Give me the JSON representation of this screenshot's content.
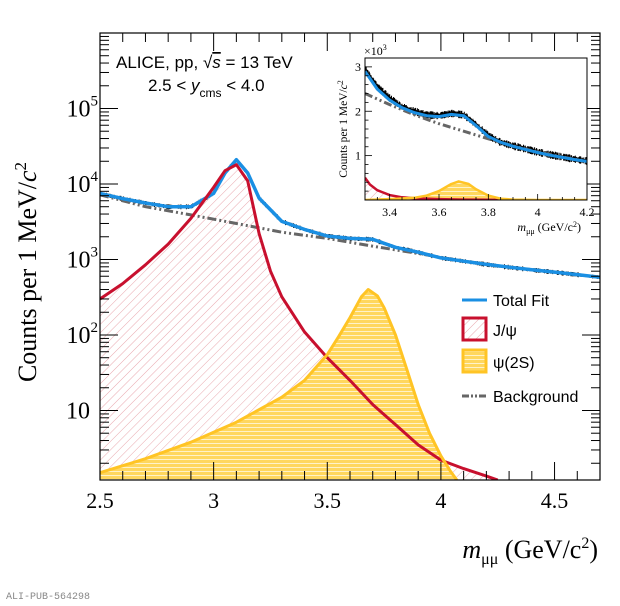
{
  "chart_data": [
    {
      "type": "line",
      "title": "",
      "xlabel_main": "m",
      "xlabel_sub": "μμ",
      "xlabel_unit": "(GeV/c",
      "xlabel_sup": "2",
      "xlabel_close": ")",
      "ylabel": "Counts per 1 MeV/",
      "ylabel_c": "c",
      "ylabel_sup": "2",
      "yscale": "log",
      "xlim": [
        2.5,
        4.7
      ],
      "ylim": [
        1.2,
        1000000
      ],
      "x_ticks": [
        {
          "value": 2.5,
          "label": "2.5"
        },
        {
          "value": 3.0,
          "label": "3"
        },
        {
          "value": 3.5,
          "label": "3.5"
        },
        {
          "value": 4.0,
          "label": "4"
        },
        {
          "value": 4.5,
          "label": "4.5"
        }
      ],
      "y_ticks": [
        {
          "value": 10,
          "base": "10",
          "exp": ""
        },
        {
          "value": 100,
          "base": "10",
          "exp": "2"
        },
        {
          "value": 1000,
          "base": "10",
          "exp": "3"
        },
        {
          "value": 10000,
          "base": "10",
          "exp": "4"
        },
        {
          "value": 100000,
          "base": "10",
          "exp": "5"
        }
      ],
      "annotations": {
        "line1_prefix": "ALICE, pp, ",
        "line1_sqrt": "√",
        "line1_s": "s",
        "line1_suffix": " = 13 TeV",
        "line2_prefix": "2.5 < ",
        "line2_y": "y",
        "line2_sub": "cms",
        "line2_suffix": " < 4.0"
      },
      "legend": {
        "placement": "right-middle",
        "entries": [
          {
            "label": "Total Fit",
            "color": "#1a8fe3",
            "style": "line"
          },
          {
            "label": "J/ψ",
            "color": "#c8102e",
            "style": "hatched-box"
          },
          {
            "label": "ψ(2S)",
            "color": "#ffc425",
            "style": "filled-box"
          },
          {
            "label": "Background",
            "color": "#666666",
            "style": "dash-dot"
          }
        ]
      },
      "series": [
        {
          "name": "Data",
          "color": "#000000",
          "x": [
            2.5,
            2.6,
            2.7,
            2.8,
            2.9,
            3.0,
            3.05,
            3.1,
            3.15,
            3.2,
            3.3,
            3.4,
            3.5,
            3.6,
            3.7,
            3.8,
            3.9,
            4.0,
            4.1,
            4.2,
            4.3,
            4.4,
            4.5,
            4.6,
            4.7
          ],
          "y": [
            7500,
            6400,
            5600,
            5000,
            5000,
            7500,
            14000,
            21000,
            14000,
            6500,
            3200,
            2500,
            2050,
            1900,
            1850,
            1450,
            1250,
            1050,
            950,
            860,
            790,
            730,
            680,
            630,
            580
          ]
        },
        {
          "name": "Total Fit",
          "color": "#1a8fe3",
          "x": [
            2.5,
            2.6,
            2.7,
            2.8,
            2.9,
            3.0,
            3.05,
            3.1,
            3.15,
            3.2,
            3.3,
            3.4,
            3.5,
            3.6,
            3.7,
            3.8,
            3.9,
            4.0,
            4.1,
            4.2,
            4.3,
            4.4,
            4.5,
            4.6,
            4.7
          ],
          "y": [
            7500,
            6400,
            5600,
            5000,
            5000,
            7500,
            14000,
            21000,
            14000,
            6500,
            3200,
            2500,
            2050,
            1900,
            1850,
            1450,
            1250,
            1050,
            950,
            860,
            790,
            730,
            680,
            630,
            580
          ]
        },
        {
          "name": "J/ψ",
          "color": "#c8102e",
          "x": [
            2.5,
            2.6,
            2.7,
            2.8,
            2.9,
            3.0,
            3.05,
            3.1,
            3.15,
            3.2,
            3.25,
            3.3,
            3.4,
            3.5,
            3.6,
            3.7,
            3.8,
            3.9,
            4.0,
            4.1,
            4.2,
            4.25
          ],
          "y": [
            300,
            480,
            850,
            1600,
            3500,
            9000,
            15000,
            18000,
            11000,
            2200,
            700,
            320,
            110,
            50,
            25,
            12,
            6.5,
            3.5,
            2.2,
            1.7,
            1.35,
            1.2
          ]
        },
        {
          "name": "ψ(2S)",
          "color": "#ffc425",
          "x": [
            2.5,
            2.7,
            2.9,
            3.1,
            3.3,
            3.4,
            3.5,
            3.55,
            3.6,
            3.65,
            3.68,
            3.72,
            3.75,
            3.8,
            3.85,
            3.9,
            3.95,
            4.0,
            4.04,
            4.07
          ],
          "y": [
            1.5,
            2.3,
            3.8,
            7,
            15,
            25,
            55,
            95,
            170,
            320,
            400,
            330,
            230,
            100,
            35,
            12,
            5,
            2.5,
            1.6,
            1.2
          ]
        },
        {
          "name": "Background",
          "color": "#666666",
          "x": [
            2.5,
            2.7,
            2.9,
            3.1,
            3.3,
            3.5,
            3.7,
            3.9,
            4.1,
            4.3,
            4.5,
            4.7
          ],
          "y": [
            7200,
            5000,
            3900,
            3000,
            2300,
            1900,
            1500,
            1200,
            950,
            790,
            680,
            580
          ]
        }
      ]
    },
    {
      "type": "line",
      "title": "inset",
      "xlabel_main": "m",
      "xlabel_sub": "μμ",
      "xlabel_unit": "(GeV/c",
      "xlabel_sup": "2",
      "xlabel_close": ")",
      "ylabel": "Counts per 1 MeV/",
      "ylabel_c": "c",
      "ylabel_sup": "2",
      "multiplier": "×10",
      "multiplier_exp": "3",
      "yscale": "linear",
      "xlim": [
        3.3,
        4.2
      ],
      "ylim": [
        0,
        3.2
      ],
      "x_ticks": [
        {
          "value": 3.4,
          "label": "3.4"
        },
        {
          "value": 3.6,
          "label": "3.6"
        },
        {
          "value": 3.8,
          "label": "3.8"
        },
        {
          "value": 4.0,
          "label": "4"
        },
        {
          "value": 4.2,
          "label": "4.2"
        }
      ],
      "y_ticks": [
        {
          "value": 1,
          "label": "1"
        },
        {
          "value": 2,
          "label": "2"
        },
        {
          "value": 3,
          "label": "3"
        }
      ],
      "series": [
        {
          "name": "Data",
          "color": "#000000",
          "x": [
            3.3,
            3.35,
            3.4,
            3.45,
            3.5,
            3.55,
            3.6,
            3.65,
            3.7,
            3.75,
            3.8,
            3.85,
            3.9,
            3.95,
            4.0,
            4.05,
            4.1,
            4.15,
            4.2
          ],
          "y": [
            2.95,
            2.55,
            2.3,
            2.1,
            2.0,
            1.92,
            1.9,
            1.95,
            1.92,
            1.7,
            1.45,
            1.3,
            1.22,
            1.15,
            1.08,
            1.02,
            0.97,
            0.92,
            0.88
          ]
        },
        {
          "name": "Total Fit",
          "color": "#1a8fe3",
          "x": [
            3.3,
            3.35,
            3.4,
            3.45,
            3.5,
            3.55,
            3.6,
            3.65,
            3.7,
            3.75,
            3.8,
            3.85,
            3.9,
            3.95,
            4.0,
            4.05,
            4.1,
            4.15,
            4.2
          ],
          "y": [
            2.9,
            2.5,
            2.25,
            2.08,
            1.97,
            1.9,
            1.88,
            1.93,
            1.9,
            1.68,
            1.43,
            1.3,
            1.21,
            1.14,
            1.07,
            1.01,
            0.96,
            0.91,
            0.87
          ]
        },
        {
          "name": "J/ψ",
          "color": "#c8102e",
          "x": [
            3.3,
            3.32,
            3.35,
            3.4,
            3.45,
            3.5,
            3.6,
            3.7,
            3.8,
            3.9
          ],
          "y": [
            0.5,
            0.35,
            0.22,
            0.11,
            0.06,
            0.04,
            0.02,
            0.01,
            0.005,
            0.0
          ]
        },
        {
          "name": "ψ(2S)",
          "color": "#ffc425",
          "x": [
            3.3,
            3.4,
            3.5,
            3.55,
            3.6,
            3.65,
            3.68,
            3.72,
            3.75,
            3.8,
            3.85,
            3.9,
            4.0,
            4.2
          ],
          "y": [
            0.0,
            0.02,
            0.05,
            0.1,
            0.2,
            0.36,
            0.42,
            0.36,
            0.24,
            0.1,
            0.03,
            0.01,
            0.0,
            0.0
          ]
        },
        {
          "name": "Background",
          "color": "#666666",
          "x": [
            3.3,
            3.4,
            3.5,
            3.6,
            3.7,
            3.8,
            3.9,
            4.0,
            4.1,
            4.2
          ],
          "y": [
            2.4,
            2.15,
            1.92,
            1.72,
            1.55,
            1.38,
            1.22,
            1.08,
            0.97,
            0.87
          ]
        }
      ]
    }
  ],
  "footer": {
    "id_label": "ALI-PUB-564298"
  }
}
